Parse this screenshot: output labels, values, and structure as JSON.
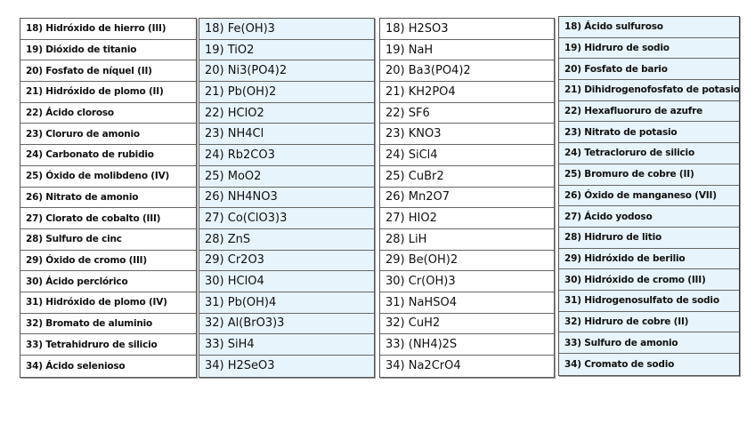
{
  "columns": [
    {
      "kind": "names",
      "items": [
        "18) Hidróxido de hierro (III)",
        "19) Dióxido de titanio",
        "20) Fosfato de níquel (II)",
        "21) Hidróxido de plomo (II)",
        "22) Ácido cloroso",
        "23) Cloruro de amonio",
        "24) Carbonato de rubidio",
        "25) Óxido de molibdeno (IV)",
        "26) Nitrato de amonio",
        "27) Clorato de cobalto (III)",
        "28) Sulfuro de cinc",
        "29) Óxido de cromo (III)",
        "30) Ácido perclórico",
        "31) Hidróxido de plomo (IV)",
        "32) Bromato de aluminio",
        "33) Tetrahidruro de silicio",
        "34) Ácido selenioso"
      ]
    },
    {
      "kind": "formulas",
      "items": [
        "18) Fe(OH)3",
        "19) TiO2",
        "20) Ni3(PO4)2",
        "21) Pb(OH)2",
        "22) HClO2",
        "23) NH4Cl",
        "24) Rb2CO3",
        "25) MoO2",
        "26) NH4NO3",
        "27) Co(ClO3)3",
        "28) ZnS",
        "29) Cr2O3",
        "30) HClO4",
        "31) Pb(OH)4",
        "32) Al(BrO3)3",
        "33) SiH4",
        "34) H2SeO3"
      ]
    },
    {
      "kind": "formulas",
      "items": [
        "18) H2SO3",
        "19) NaH",
        "20) Ba3(PO4)2",
        "21) KH2PO4",
        "22) SF6",
        "23) KNO3",
        "24) SiCl4",
        "25) CuBr2",
        "26) Mn2O7",
        "27) HIO2",
        "28) LiH",
        "29) Be(OH)2",
        "30) Cr(OH)3",
        "31) NaHSO4",
        "32) CuH2",
        "33) (NH4)2S",
        "34) Na2CrO4"
      ]
    },
    {
      "kind": "names",
      "items": [
        "18) Ácido sulfuroso",
        "19) Hidruro de sodio",
        "20) Fosfato de bario",
        "21) Dihidrogenofosfato de potasio",
        "22) Hexafluoruro de azufre",
        "23) Nitrato de potasio",
        "24) Tetracloruro de silicio",
        "25) Bromuro de cobre (II)",
        "26) Óxido de manganeso (VII)",
        "27) Ácido yodoso",
        "28) Hidruro de litio",
        "29) Hidróxido de berilio",
        "30) Hidróxido de cromo (III)",
        "31) Hidrogenosulfato de sodio",
        "32) Hidruro de cobre (II)",
        "33) Sulfuro de amonio",
        "34) Cromato de sodio"
      ]
    }
  ],
  "colors": {
    "blue_fill": "#e8f4fb",
    "border": "#555555"
  }
}
